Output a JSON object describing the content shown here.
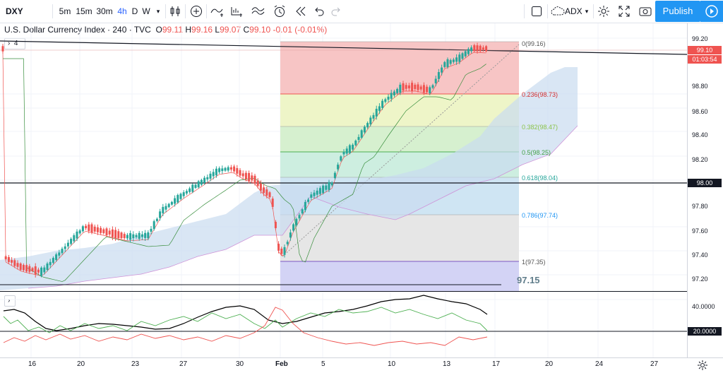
{
  "toolbar": {
    "symbol": "DXY",
    "intervals": [
      "5m",
      "15m",
      "30m",
      "4h",
      "D",
      "W"
    ],
    "active_interval": "4h",
    "indicator_label": "ADX",
    "publish_label": "Publish"
  },
  "legend": {
    "title": "U.S. Dollar Currency Index · 240 · TVC",
    "open_label": "O",
    "open": "99.11",
    "high_label": "H",
    "high": "99.16",
    "low_label": "L",
    "low": "99.07",
    "close_label": "C",
    "close": "99.10",
    "change": "-0.01 (-0.01%)",
    "collapse_count": "4"
  },
  "price_axis": {
    "labels": [
      "99.20",
      "98.80",
      "98.60",
      "98.40",
      "98.20",
      "97.80",
      "97.60",
      "97.40",
      "97.20"
    ],
    "current_price": "99.10",
    "countdown": "01:03:54",
    "level_tag": "98.00"
  },
  "adx_axis": {
    "labels": [
      "40.0000"
    ],
    "level_tag": "20.0000"
  },
  "fib_levels": [
    "0(99.16)",
    "0.236(98.73)",
    "0.382(98.47)",
    "0.5(98.25)",
    "0.618(98.04)",
    "0.786(97.74)",
    "1(97.35)"
  ],
  "support_label": "97.15",
  "x_labels": [
    "16",
    "20",
    "23",
    "27",
    "30",
    "Feb",
    "5",
    "10",
    "13",
    "17",
    "20",
    "24",
    "27"
  ],
  "colors": {
    "up": "#26a69a",
    "down": "#ef5350",
    "accent": "#2196f3"
  }
}
